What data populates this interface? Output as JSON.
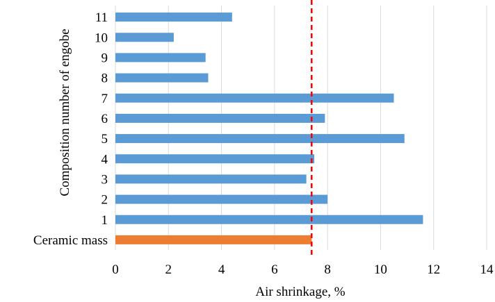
{
  "chart_data": {
    "type": "bar",
    "orientation": "horizontal",
    "xlabel": "Air shrinkage, %",
    "ylabel": "Composition number of engobe",
    "xlim": [
      0,
      14
    ],
    "xticks": [
      "0",
      "2",
      "4",
      "6",
      "8",
      "10",
      "12",
      "14"
    ],
    "grid": "vertical",
    "categories": [
      "Ceramic mass",
      "1",
      "2",
      "3",
      "4",
      "5",
      "6",
      "7",
      "8",
      "9",
      "10",
      "11"
    ],
    "values": [
      7.4,
      11.6,
      8.0,
      7.2,
      7.5,
      10.9,
      7.9,
      10.5,
      3.5,
      3.4,
      2.2,
      4.4
    ],
    "bar_colors": [
      "#ed7d31",
      "#5b9bd5",
      "#5b9bd5",
      "#5b9bd5",
      "#5b9bd5",
      "#5b9bd5",
      "#5b9bd5",
      "#5b9bd5",
      "#5b9bd5",
      "#5b9bd5",
      "#5b9bd5",
      "#5b9bd5"
    ],
    "reference_line": {
      "value": 7.4,
      "style": "dashed",
      "color": "#ff0000"
    }
  }
}
